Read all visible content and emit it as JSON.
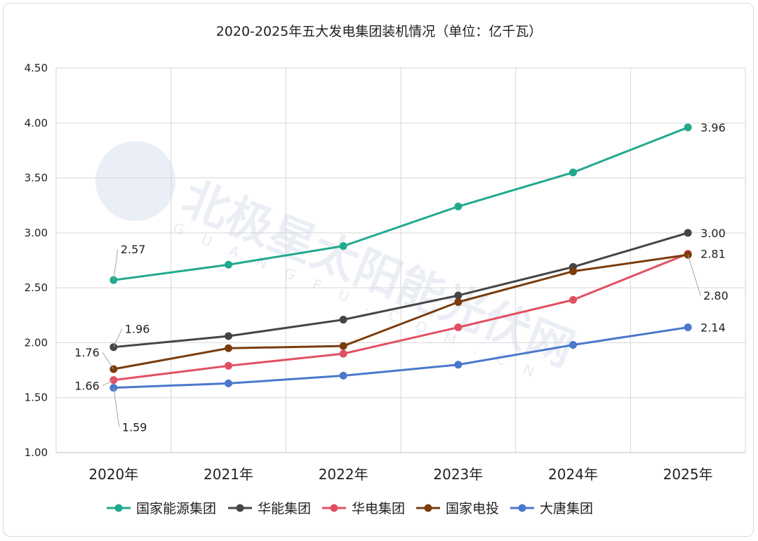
{
  "chart_data": {
    "type": "line",
    "title": "2020-2025年五大发电集团装机情况（单位：亿千瓦）",
    "categories": [
      "2020年",
      "2021年",
      "2022年",
      "2023年",
      "2024年",
      "2025年"
    ],
    "ylim": [
      1.0,
      4.5
    ],
    "yticks": [
      "1.00",
      "1.50",
      "2.00",
      "2.50",
      "3.00",
      "3.50",
      "4.00",
      "4.50"
    ],
    "ytick_values": [
      1.0,
      1.5,
      2.0,
      2.5,
      3.0,
      3.5,
      4.0,
      4.5
    ],
    "grid": true,
    "legend_position": "bottom",
    "series": [
      {
        "name": "国家能源集团",
        "color": "#21a98e",
        "values": [
          2.57,
          2.71,
          2.88,
          3.24,
          3.55,
          3.96
        ]
      },
      {
        "name": "华能集团",
        "color": "#454545",
        "values": [
          1.96,
          2.06,
          2.21,
          2.43,
          2.69,
          3.0
        ]
      },
      {
        "name": "华电集团",
        "color": "#e24f62",
        "values": [
          1.66,
          1.79,
          1.9,
          2.14,
          2.39,
          2.81
        ]
      },
      {
        "name": "国家电投",
        "color": "#7a3c0b",
        "values": [
          1.76,
          1.95,
          1.97,
          2.37,
          2.65,
          2.8
        ]
      },
      {
        "name": "大唐集团",
        "color": "#4a78cd",
        "values": [
          1.59,
          1.63,
          1.7,
          1.8,
          1.98,
          2.14
        ]
      }
    ],
    "data_labels": [
      {
        "series": 0,
        "index": 0,
        "text": "2.57"
      },
      {
        "series": 0,
        "index": 5,
        "text": "3.96"
      },
      {
        "series": 1,
        "index": 0,
        "text": "1.96"
      },
      {
        "series": 1,
        "index": 5,
        "text": "3.00"
      },
      {
        "series": 2,
        "index": 0,
        "text": "1.66"
      },
      {
        "series": 2,
        "index": 5,
        "text": "2.81"
      },
      {
        "series": 3,
        "index": 0,
        "text": "1.76"
      },
      {
        "series": 3,
        "index": 5,
        "text": "2.80"
      },
      {
        "series": 4,
        "index": 0,
        "text": "1.59"
      },
      {
        "series": 4,
        "index": 5,
        "text": "2.14"
      }
    ]
  },
  "watermark": {
    "main_text": "北极星太阳能光伏网",
    "sub_text": "GUANGFU.COM.CN"
  }
}
